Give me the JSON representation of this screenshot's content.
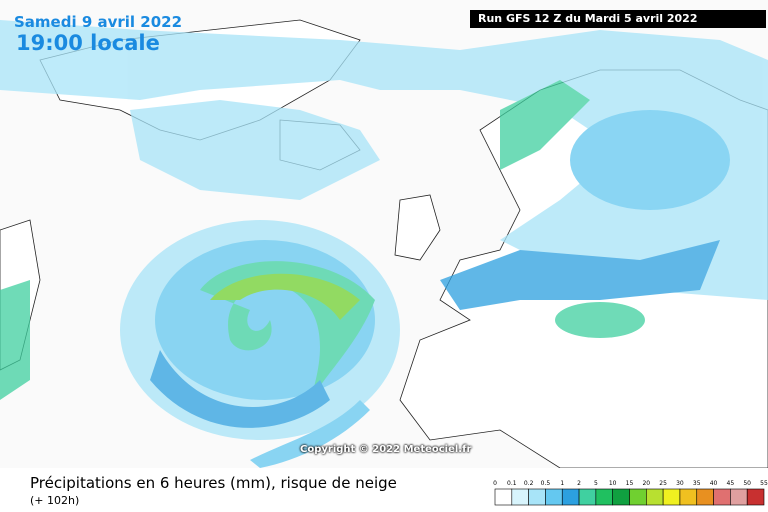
{
  "header": {
    "date": "Samedi 9 avril 2022",
    "time": "19:00 locale",
    "run": "Run GFS 12 Z du Mardi 5 avril 2022"
  },
  "copyright": "Copyright © 2022 Meteociel.fr",
  "caption": {
    "title": "Précipitations en 6 heures (mm), risque de neige",
    "subtitle": "(+ 102h)"
  },
  "legend": {
    "labels": [
      0,
      0.1,
      0.2,
      0.5,
      1,
      2,
      5,
      10,
      15,
      20,
      25,
      30,
      35,
      40,
      45,
      50,
      55
    ],
    "colors": [
      "#ffffff",
      "#d8f4fc",
      "#a8e4f8",
      "#64c8f0",
      "#2ca0e0",
      "#40d0a0",
      "#20c060",
      "#10a040",
      "#70d030",
      "#b8e030",
      "#f0f020",
      "#f0c020",
      "#e89020",
      "#e07070",
      "#e0a0a0",
      "#c83030"
    ]
  }
}
